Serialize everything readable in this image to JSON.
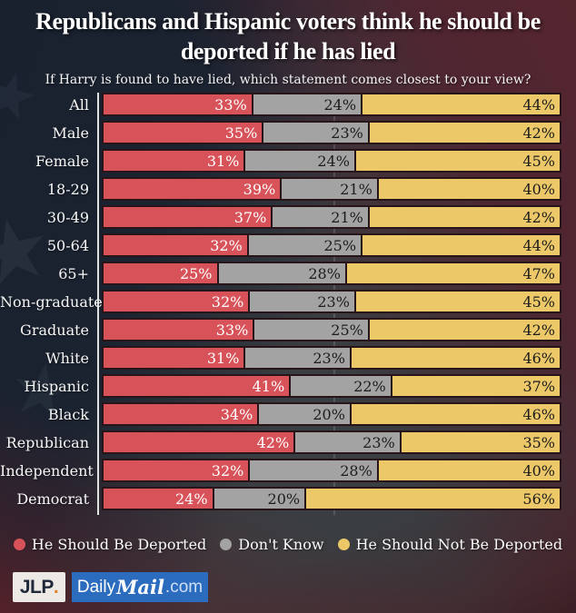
{
  "title": {
    "line1": "Republicans and Hispanic voters think he should be",
    "line2": "deported if he has lied"
  },
  "subtitle": "If Harry is found to have lied, which statement comes closest to your view?",
  "chart_data": {
    "type": "bar",
    "stacked": true,
    "orientation": "horizontal",
    "value_suffix": "%",
    "xlim": [
      0,
      100
    ],
    "gridline_at": 50,
    "legend_position": "bottom",
    "categories": [
      "All",
      "Male",
      "Female",
      "18-29",
      "30-49",
      "50-64",
      "65+",
      "Non-graduate",
      "Graduate",
      "White",
      "Hispanic",
      "Black",
      "Republican",
      "Independent",
      "Democrat"
    ],
    "series": [
      {
        "name": "He Should Be Deported",
        "color": "#d85359",
        "text_color": "#ffffff",
        "values": [
          33,
          35,
          31,
          39,
          37,
          32,
          25,
          32,
          33,
          31,
          41,
          34,
          42,
          32,
          24
        ]
      },
      {
        "name": "Don't Know",
        "color": "#a3a3a3",
        "text_color": "#1c1c1c",
        "values": [
          24,
          23,
          24,
          21,
          21,
          25,
          28,
          23,
          25,
          23,
          22,
          20,
          23,
          28,
          20
        ]
      },
      {
        "name": "He Should Not Be Deported",
        "color": "#ecc868",
        "text_color": "#1c1c1c",
        "values": [
          44,
          42,
          45,
          40,
          42,
          44,
          47,
          45,
          42,
          46,
          37,
          46,
          35,
          40,
          56
        ]
      }
    ]
  },
  "legend": [
    {
      "label": "He Should Be Deported",
      "color": "#d85359"
    },
    {
      "label": "Don't Know",
      "color": "#a3a3a3"
    },
    {
      "label": "He Should Not Be Deported",
      "color": "#ecc868"
    }
  ],
  "footer": {
    "jlp_label": "JLP",
    "jlp_dot": ".",
    "dailymail_daily": "Daily",
    "dailymail_mail": "Mail",
    "dailymail_com": ".com"
  }
}
